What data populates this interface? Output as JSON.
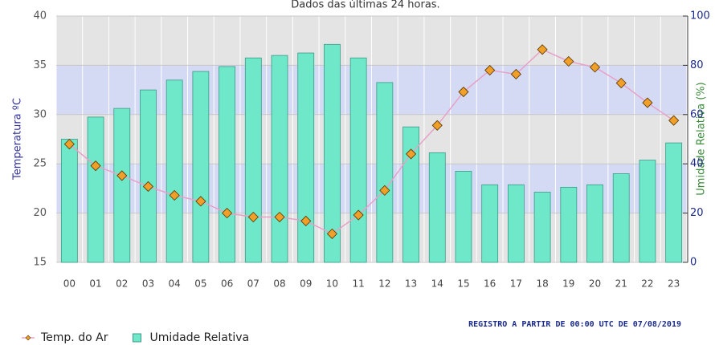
{
  "chart_data": {
    "type": "bar",
    "title": "Dados das últimas 24 horas.",
    "note": "REGISTRO A PARTIR DE 00:00 UTC DE 07/08/2019",
    "ylabel": "Temperatura ºC",
    "y2label": "Umidade Relativa (%)",
    "categories": [
      "00",
      "01",
      "02",
      "03",
      "04",
      "05",
      "06",
      "07",
      "08",
      "09",
      "10",
      "11",
      "12",
      "13",
      "14",
      "15",
      "16",
      "17",
      "18",
      "19",
      "20",
      "21",
      "22",
      "23"
    ],
    "ylim": [
      15,
      40
    ],
    "yticks": [
      15,
      20,
      25,
      30,
      35,
      40
    ],
    "y2lim": [
      0,
      100
    ],
    "y2ticks": [
      0,
      20,
      40,
      60,
      80,
      100
    ],
    "grid": true,
    "legend": "bottom-left",
    "series": [
      {
        "name": "Temp. do Ar",
        "type": "line",
        "color": "#e8a0c8",
        "marker_color": "#f0a028",
        "axis": "y",
        "values": [
          27.0,
          24.8,
          23.8,
          22.7,
          21.8,
          21.2,
          20.0,
          19.6,
          19.6,
          19.2,
          17.9,
          19.8,
          22.3,
          26.0,
          28.9,
          32.3,
          34.5,
          34.1,
          36.6,
          35.4,
          34.8,
          33.2,
          31.2,
          29.4
        ]
      },
      {
        "name": "Umidade Relativa",
        "type": "bar",
        "color": "#6ee8c8",
        "axis": "y2",
        "values": [
          50,
          59,
          62.5,
          70,
          74,
          77.5,
          79.5,
          83,
          84,
          85,
          88.5,
          83,
          73,
          55,
          44.5,
          37,
          31.5,
          31.5,
          28.5,
          30.5,
          31.5,
          36,
          41.5,
          48.5
        ]
      }
    ]
  }
}
